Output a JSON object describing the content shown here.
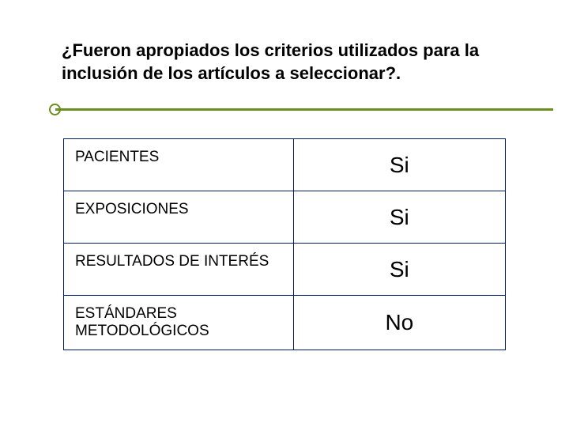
{
  "colors": {
    "accent": "#6b8e23",
    "table_border": "#001a66",
    "text": "#000000",
    "background": "#ffffff"
  },
  "title": "¿Fueron apropiados los criterios utilizados para la inclusión de los artículos a seleccionar?.",
  "table": {
    "rows": [
      {
        "label": "PACIENTES",
        "value": "Si"
      },
      {
        "label": "EXPOSICIONES",
        "value": "Si"
      },
      {
        "label": "RESULTADOS DE INTERÉS",
        "value": "Si"
      },
      {
        "label": "ESTÁNDARES METODOLÓGICOS",
        "value": "No"
      }
    ]
  }
}
